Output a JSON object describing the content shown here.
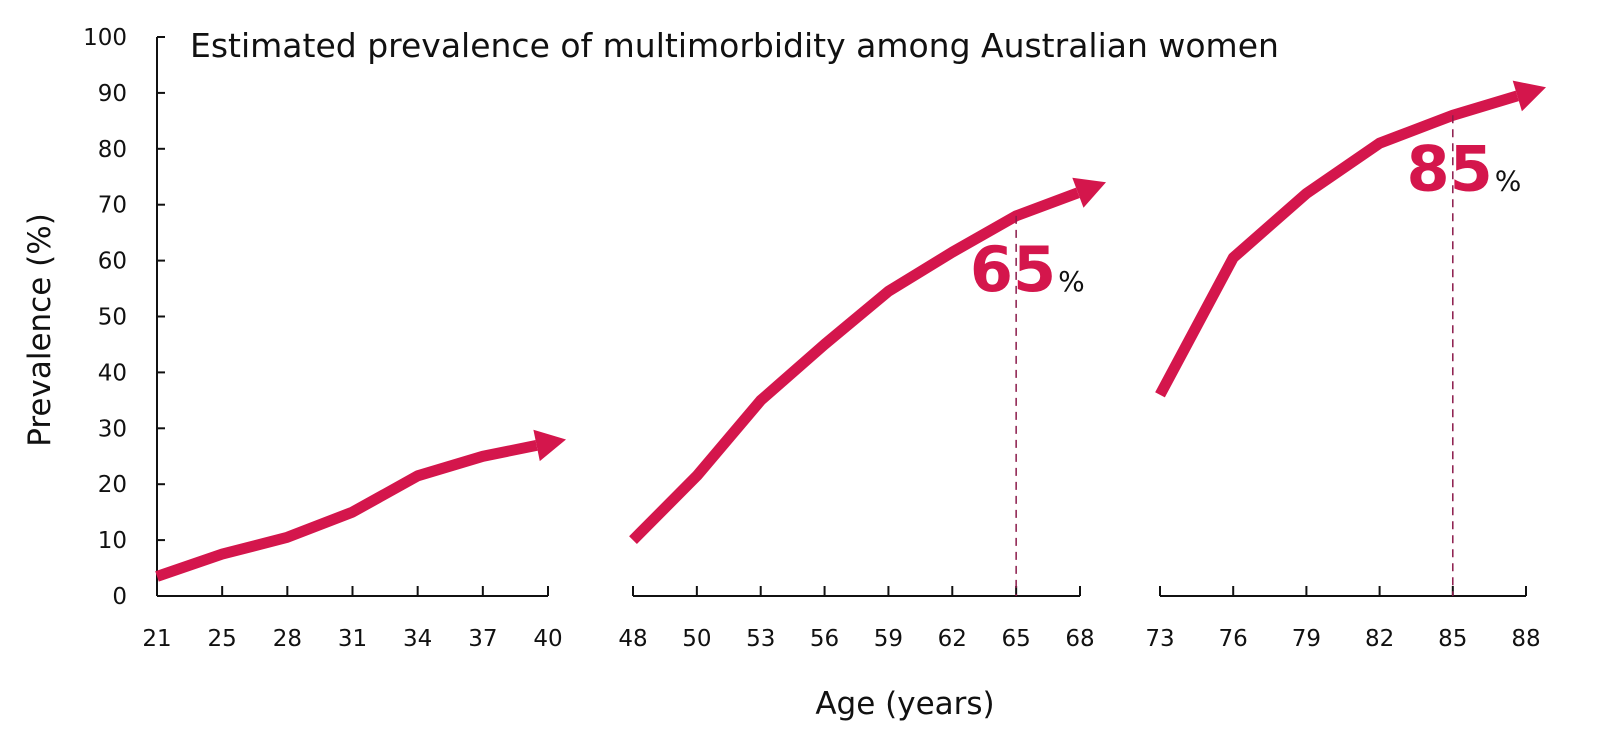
{
  "chart_data": {
    "type": "line",
    "title": "Estimated prevalence of multimorbidity among Australian women",
    "xlabel": "Age (years)",
    "ylabel": "Prevalence (%)",
    "ylim": [
      0,
      100
    ],
    "yticks": [
      "0",
      "10",
      "20",
      "30",
      "40",
      "50",
      "60",
      "70",
      "80",
      "90",
      "100"
    ],
    "grid": false,
    "legend": "none",
    "line_color": "#d4164c",
    "panels": [
      {
        "name": "young",
        "xticks": [
          "21",
          "25",
          "28",
          "31",
          "34",
          "37",
          "40"
        ],
        "series": [
          {
            "x": 21,
            "y": 3.5
          },
          {
            "x": 25,
            "y": 7.5
          },
          {
            "x": 28,
            "y": 10.5
          },
          {
            "x": 31,
            "y": 15
          },
          {
            "x": 34,
            "y": 21.5
          },
          {
            "x": 37,
            "y": 25
          },
          {
            "x": 40,
            "y": 27.5
          }
        ],
        "arrow_end_y": 28
      },
      {
        "name": "mid",
        "xticks": [
          "48",
          "50",
          "53",
          "56",
          "59",
          "62",
          "65",
          "68"
        ],
        "series": [
          {
            "x": 48,
            "y": 10
          },
          {
            "x": 50,
            "y": 21.5
          },
          {
            "x": 53,
            "y": 35
          },
          {
            "x": 56,
            "y": 45
          },
          {
            "x": 59,
            "y": 54.5
          },
          {
            "x": 62,
            "y": 61.5
          },
          {
            "x": 65,
            "y": 68
          },
          {
            "x": 68,
            "y": 73
          }
        ],
        "arrow_end_y": 74,
        "annotation": {
          "x": "65",
          "value": "65",
          "unit": "%"
        }
      },
      {
        "name": "old",
        "xticks": [
          "73",
          "76",
          "79",
          "82",
          "85",
          "88"
        ],
        "series": [
          {
            "x": 73,
            "y": 36
          },
          {
            "x": 76,
            "y": 60.5
          },
          {
            "x": 79,
            "y": 72
          },
          {
            "x": 82,
            "y": 81
          },
          {
            "x": 85,
            "y": 86
          },
          {
            "x": 88,
            "y": 90
          }
        ],
        "arrow_end_y": 91,
        "annotation": {
          "x": "85",
          "value": "85",
          "unit": "%"
        }
      }
    ]
  }
}
